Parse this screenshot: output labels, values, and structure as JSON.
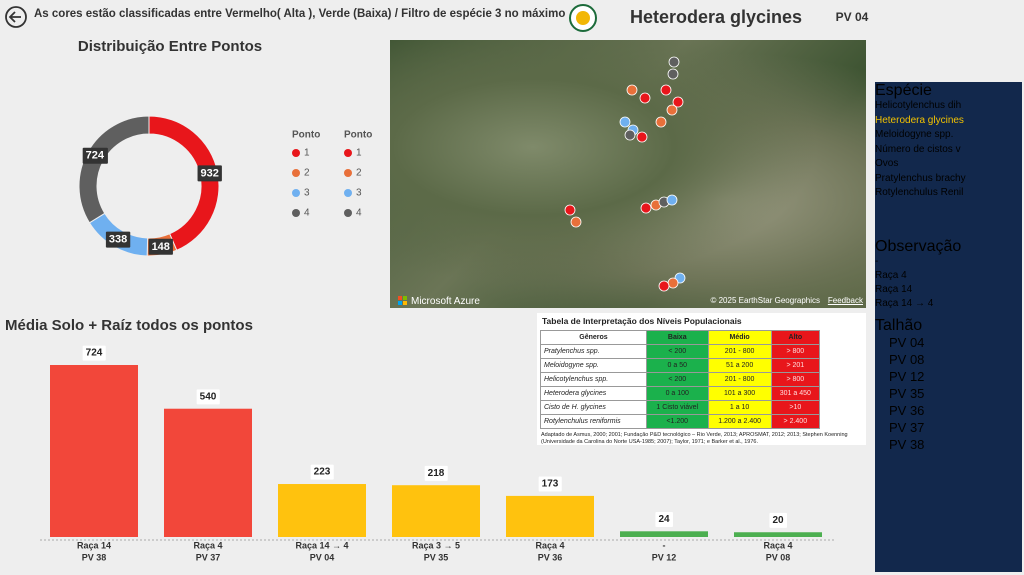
{
  "header": {
    "title": "As cores estão classificadas entre Vermelho( Alta ), Verde (Baixa) / Filtro de espécie 3 no máximo",
    "species": "Heterodera glycines",
    "plot": "PV 04"
  },
  "chart_data": [
    {
      "type": "donut",
      "title": "Distribuição Entre Pontos",
      "legend_title": "Ponto",
      "categories": [
        "1",
        "2",
        "3",
        "4"
      ],
      "values": [
        932,
        148,
        338,
        724
      ],
      "colors": [
        "#e8161b",
        "#e8703a",
        "#6fb0f0",
        "#5f5f5f"
      ]
    },
    {
      "type": "bar",
      "title": "Média Solo + Raíz todos os pontos",
      "categories": [
        "Raça 14",
        "Raça 4",
        "Raça 14 → 4",
        "Raça 3 → 5",
        "Raça 4",
        "-",
        "Raça 4"
      ],
      "category_groups": [
        "PV 38",
        "PV 37",
        "PV 04",
        "PV 35",
        "PV 36",
        "PV 12",
        "PV 08"
      ],
      "values": [
        724,
        540,
        223,
        218,
        173,
        24,
        20
      ],
      "colors": [
        "#f2473a",
        "#f2473a",
        "#ffc20e",
        "#ffc20e",
        "#ffc20e",
        "#4caf50",
        "#4caf50"
      ]
    }
  ],
  "map": {
    "attribution": "Microsoft Azure",
    "copyright": "© 2025 EarthStar Geographics",
    "feedback": "Feedback"
  },
  "table": {
    "title": "Tabela de Interpretação dos Níveis Populacionais",
    "header": [
      "Gêneros",
      "Baixa",
      "Médio",
      "Alto"
    ],
    "rows": [
      [
        "Pratylenchus spp.",
        "< 200",
        "201 - 800",
        "> 800"
      ],
      [
        "Meloidogyne spp.",
        "0 a 50",
        "51 a 200",
        "> 201"
      ],
      [
        "Helicotylenchus spp.",
        "< 200",
        "201 - 800",
        "> 800"
      ],
      [
        "Heterodera glycines",
        "0 a 100",
        "101 a 300",
        "301 a 450"
      ],
      [
        "Cisto de H. glycines",
        "1 Cisto viável",
        "1 a 10",
        ">10"
      ],
      [
        "Rotylenchulus reniformis",
        "<1.200",
        "1.200 a 2.400",
        "> 2.400"
      ]
    ],
    "note": "Adaptado de Asmus, 2000; 2001; Fundação P&D tecnológico – Rio Verde, 2013; APROSMAT, 2012; 2013; Stephen Koenning (Universidade da Carolina do Norte USA-1985; 2007); Taylor, 1971; e Barker et al., 1976."
  },
  "slicers": [
    {
      "title": "Espécie",
      "items": [
        "Helicotylenchus dih",
        "Heterodera glycines",
        "Meloidogyne spp.",
        "Número de cistos v",
        "Ovos",
        "Pratylenchus brachy",
        "Rotylenchulus Renil"
      ],
      "selected": 1
    },
    {
      "title": "Observação",
      "items": [
        "-",
        "Raça 4",
        "Raça 14",
        "Raça 14 → 4"
      ]
    },
    {
      "title": "Talhão",
      "items": [
        "PV 04",
        "PV 08",
        "PV 12",
        "PV 35",
        "PV 36",
        "PV 37",
        "PV 38"
      ]
    }
  ]
}
